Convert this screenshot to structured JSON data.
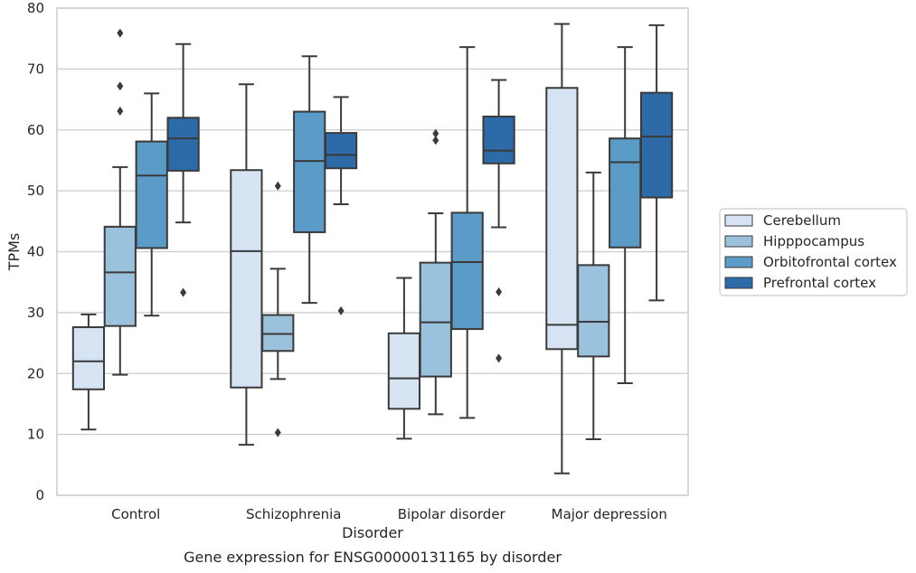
{
  "chart_data": {
    "type": "box",
    "caption": "Gene expression for ENSG00000131165 by disorder",
    "xlabel": "Disorder",
    "ylabel": "TPMs",
    "ylim": [
      0,
      80
    ],
    "yticks": [
      0,
      10,
      20,
      30,
      40,
      50,
      60,
      70,
      80
    ],
    "grid": "horizontal",
    "legend_position": "right",
    "categories": [
      "Control",
      "Schizophrenia",
      "Bipolar disorder",
      "Major depression"
    ],
    "series": [
      {
        "name": "Cerebellum",
        "color": "#d5e3f2",
        "boxes": [
          {
            "whislo": 10.8,
            "q1": 17.4,
            "median": 22.0,
            "q3": 27.6,
            "whishi": 29.7,
            "fliers": []
          },
          {
            "whislo": 8.3,
            "q1": 17.7,
            "median": 40.1,
            "q3": 53.4,
            "whishi": 67.5,
            "fliers": []
          },
          {
            "whislo": 9.3,
            "q1": 14.2,
            "median": 19.2,
            "q3": 26.6,
            "whishi": 35.7,
            "fliers": []
          },
          {
            "whislo": 3.6,
            "q1": 24.0,
            "median": 28.0,
            "q3": 66.9,
            "whishi": 77.4,
            "fliers": []
          }
        ]
      },
      {
        "name": "Hipppocampus",
        "color": "#9bc2dc",
        "boxes": [
          {
            "whislo": 19.8,
            "q1": 27.8,
            "median": 36.6,
            "q3": 44.1,
            "whishi": 53.9,
            "fliers": [
              63.1,
              67.2,
              75.9
            ]
          },
          {
            "whislo": 19.1,
            "q1": 23.7,
            "median": 26.5,
            "q3": 29.6,
            "whishi": 37.2,
            "fliers": [
              10.3,
              50.8
            ]
          },
          {
            "whislo": 13.3,
            "q1": 19.5,
            "median": 28.4,
            "q3": 38.2,
            "whishi": 46.3,
            "fliers": [
              58.3,
              59.4
            ]
          },
          {
            "whislo": 9.2,
            "q1": 22.8,
            "median": 28.5,
            "q3": 37.8,
            "whishi": 53.0,
            "fliers": []
          }
        ]
      },
      {
        "name": "Orbitofrontal cortex",
        "color": "#5a9bc7",
        "boxes": [
          {
            "whislo": 29.5,
            "q1": 40.6,
            "median": 52.5,
            "q3": 58.1,
            "whishi": 66.0,
            "fliers": []
          },
          {
            "whislo": 31.6,
            "q1": 43.2,
            "median": 54.9,
            "q3": 63.0,
            "whishi": 72.1,
            "fliers": []
          },
          {
            "whislo": 12.7,
            "q1": 27.3,
            "median": 38.3,
            "q3": 46.4,
            "whishi": 73.6,
            "fliers": []
          },
          {
            "whislo": 18.4,
            "q1": 40.7,
            "median": 54.7,
            "q3": 58.6,
            "whishi": 73.6,
            "fliers": []
          }
        ]
      },
      {
        "name": "Prefrontal cortex",
        "color": "#2c6aa8",
        "boxes": [
          {
            "whislo": 44.8,
            "q1": 53.3,
            "median": 58.6,
            "q3": 62.0,
            "whishi": 74.1,
            "fliers": [
              33.3
            ]
          },
          {
            "whislo": 47.8,
            "q1": 53.7,
            "median": 55.9,
            "q3": 59.5,
            "whishi": 65.4,
            "fliers": [
              30.3
            ]
          },
          {
            "whislo": 44.0,
            "q1": 54.5,
            "median": 56.6,
            "q3": 62.2,
            "whishi": 68.2,
            "fliers": [
              22.5,
              33.4
            ]
          },
          {
            "whislo": 32.0,
            "q1": 48.9,
            "median": 58.9,
            "q3": 66.1,
            "whishi": 77.2,
            "fliers": []
          }
        ]
      }
    ]
  }
}
